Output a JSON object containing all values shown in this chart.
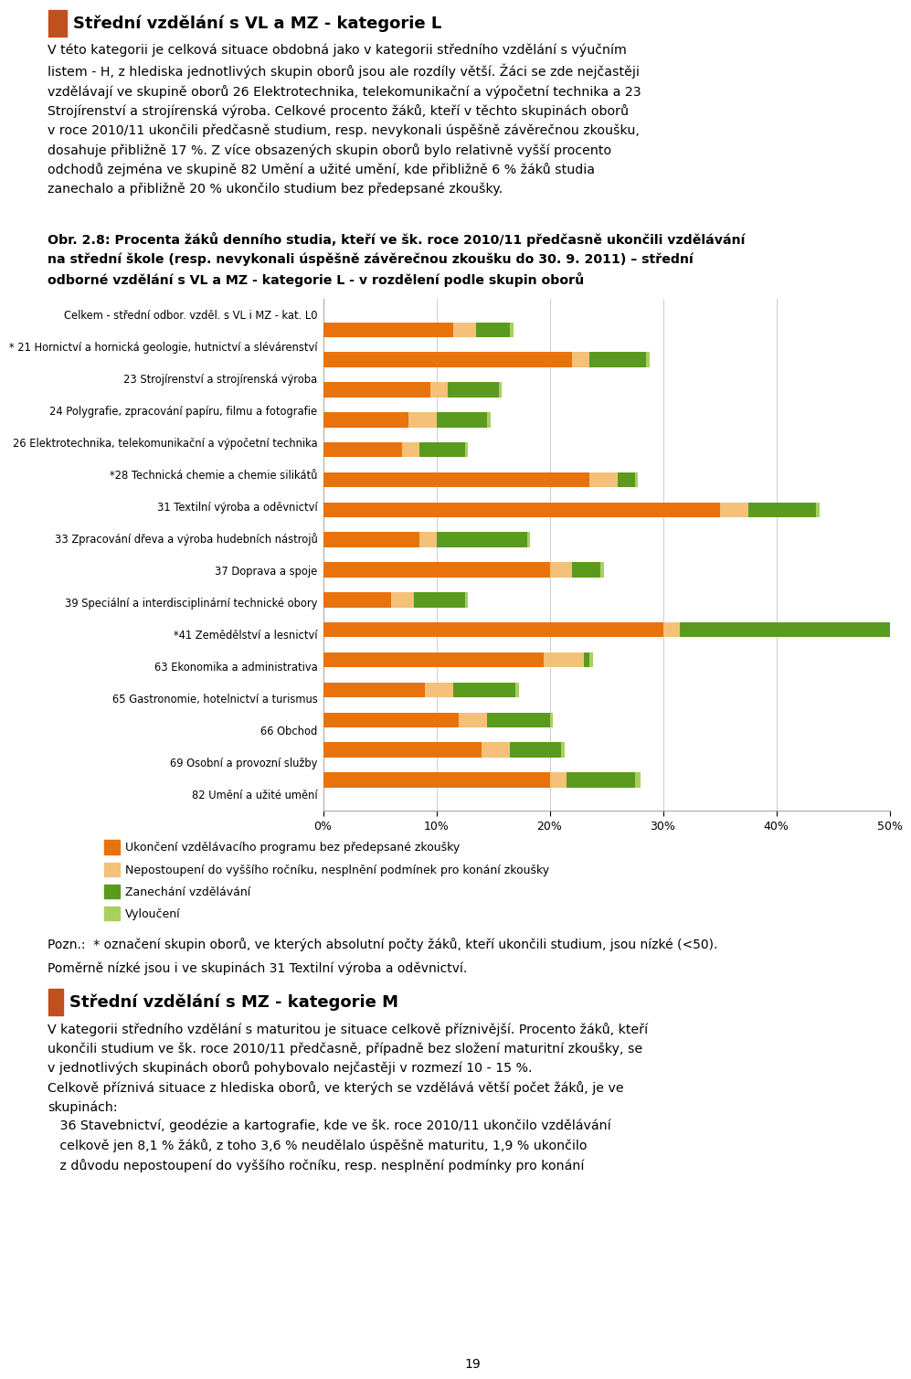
{
  "title_text": "Střední vzdělání s VL a MZ - kategorie L",
  "title_icon_color": "#C0501E",
  "heading_paragraph_lines": [
    "V této kategorii je celková situace obdobná jako v kategorii středního vzdělání s výučním",
    "listem - H, z hlediska jednotlivých skupin oborů jsou ale rozdíly větší. Žáci se zde nejčastěji",
    "vzdělávají ve skupině oborů 26 Elektrotechnika, telekomunikační a výpočetní technika a 23",
    "Strojírenství a strojírenská výroba. Celkové procento žáků, kteří v těchto skupinách oborů",
    "v roce 2010/11 ukončili předčasně studium, resp. nevykonali úspěšně závěrečnou zkoušku,",
    "dosahuje přibližně 17 %. Z více obsazených skupin oborů bylo relativně vyšší procento",
    "odchodů zejména ve skupině 82 Umění a užité umění, kde přibližně 6 % žáků studia",
    "zanechalo a přibližně 20 % ukončilo studium bez předepsané zkoušky."
  ],
  "figure_caption_lines": [
    "Obr. 2.8: Procenta žáků denního studia, kteří ve šk. roce 2010/11 předčasně ukončili vzdělávání",
    "na střední škole (resp. nevykonali úspěšně závěrečnou zkoušku do 30. 9. 2011) – střední",
    "odborné vzdělání s VL a MZ - kategorie L - v rozdělení podle skupin oborů"
  ],
  "note_line1": "Pozn.:  * označení skupin oborů, ve kterých absolutní počty žáků, kteří ukončili studium, jsou nízké (<50).",
  "note_line2": "Poměrně nízké jsou i ve skupinách 31 Textilní výroba a oděvnictví.",
  "second_heading": "Střední vzdělání s MZ - kategorie M",
  "second_para_lines": [
    "V kategorii středního vzdělání s maturitou je situace celkově příznivější. Procento žáků, kteří",
    "ukončili studium ve šk. roce 2010/11 předčasně, případně bez složení maturitní zkoušky, se",
    "v jednotlivých skupinách oborů pohybovalo nejčastěji v rozmezí 10 - 15 %.",
    "Celkově příznivá situace z hlediska oborů, ve kterých se vzdělává větší počet žáků, je ve",
    "skupinách:",
    "   36 Stavebnictví, geodézie a kartografie, kde ve šk. roce 2010/11 ukončilo vzdělávání",
    "   celkově jen 8,1 % žáků, z toho 3,6 % neudělalo úspěšně maturitu, 1,9 % ukončilo",
    "   z důvodu nepostoupení do vyššího ročníku, resp. nesplnění podmínky pro konání"
  ],
  "categories": [
    "Celkem - střední odbor. vzděl. s VL i MZ - kat. L0",
    "* 21 Hornictví a hornická geologie, hutnictví a slévárenství",
    "23 Strojírenství a strojírenská výroba",
    "24 Polygrafie, zpracování papíru, filmu a fotografie",
    "26 Elektrotechnika, telekomunikační a výpočetní technika",
    "*28 Technická chemie a chemie silikátů",
    "31 Textilní výroba a oděvnictví",
    "33 Zpracování dřeva a výroba hudebních nástrojů",
    "37 Doprava a spoje",
    "39 Speciální a interdisciplinární technické obory",
    "*41 Zemědělství a lesnictví",
    "63 Ekonomika a administrativa",
    "65 Gastronomie, hotelnictví a turismus",
    "66 Obchod",
    "69 Osobní a provozní služby",
    "82 Umění a užité umění"
  ],
  "bar_color1": "#E8720C",
  "bar_color2": "#F5C07A",
  "bar_color3": "#5A9A1F",
  "bar_color4": "#A8D060",
  "series1_name": "Ukončení vzdělávacího programu bez předepsané zkoušky",
  "series2_name": "Nepostoupení do vyššího ročníku, nesplnění podmínek pro konání zkoušky",
  "series3_name": "Zanechání vzdělávání",
  "series4_name": "Vyloučení",
  "data": {
    "s1": [
      11.5,
      22.0,
      9.5,
      7.5,
      7.0,
      23.5,
      35.0,
      8.5,
      20.0,
      6.0,
      30.0,
      19.5,
      9.0,
      12.0,
      14.0,
      20.0
    ],
    "s2": [
      2.0,
      1.5,
      1.5,
      2.5,
      1.5,
      2.5,
      2.5,
      1.5,
      2.0,
      2.0,
      1.5,
      3.5,
      2.5,
      2.5,
      2.5,
      1.5
    ],
    "s3": [
      3.0,
      5.0,
      4.5,
      4.5,
      4.0,
      1.5,
      6.0,
      8.0,
      2.5,
      4.5,
      18.5,
      0.5,
      5.5,
      5.5,
      4.5,
      6.0
    ],
    "s4": [
      0.3,
      0.3,
      0.3,
      0.3,
      0.3,
      0.3,
      0.3,
      0.3,
      0.3,
      0.3,
      0.3,
      0.3,
      0.3,
      0.3,
      0.3,
      0.5
    ]
  },
  "xlim": [
    0,
    50
  ],
  "xticks": [
    0,
    10,
    20,
    30,
    40,
    50
  ],
  "xticklabels": [
    "0%",
    "10%",
    "20%",
    "30%",
    "40%",
    "50%"
  ],
  "legend_bg": "#E0E0E0",
  "grid_color": "#CCCCCC",
  "page_number": "19"
}
